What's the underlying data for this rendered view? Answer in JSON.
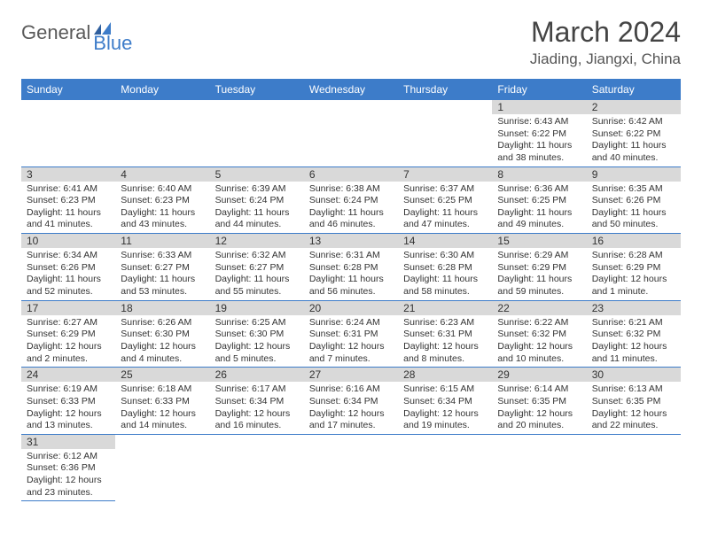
{
  "logo": {
    "general": "General",
    "blue": "Blue"
  },
  "title": "March 2024",
  "location": "Jiading, Jiangxi, China",
  "colors": {
    "header_bg": "#3d7cc9",
    "daynum_bg": "#d9d9d9",
    "row_border": "#3d7cc9"
  },
  "weekdays": [
    "Sunday",
    "Monday",
    "Tuesday",
    "Wednesday",
    "Thursday",
    "Friday",
    "Saturday"
  ],
  "grid": [
    [
      null,
      null,
      null,
      null,
      null,
      {
        "n": "1",
        "sr": "Sunrise: 6:43 AM",
        "ss": "Sunset: 6:22 PM",
        "dl": "Daylight: 11 hours and 38 minutes."
      },
      {
        "n": "2",
        "sr": "Sunrise: 6:42 AM",
        "ss": "Sunset: 6:22 PM",
        "dl": "Daylight: 11 hours and 40 minutes."
      }
    ],
    [
      {
        "n": "3",
        "sr": "Sunrise: 6:41 AM",
        "ss": "Sunset: 6:23 PM",
        "dl": "Daylight: 11 hours and 41 minutes."
      },
      {
        "n": "4",
        "sr": "Sunrise: 6:40 AM",
        "ss": "Sunset: 6:23 PM",
        "dl": "Daylight: 11 hours and 43 minutes."
      },
      {
        "n": "5",
        "sr": "Sunrise: 6:39 AM",
        "ss": "Sunset: 6:24 PM",
        "dl": "Daylight: 11 hours and 44 minutes."
      },
      {
        "n": "6",
        "sr": "Sunrise: 6:38 AM",
        "ss": "Sunset: 6:24 PM",
        "dl": "Daylight: 11 hours and 46 minutes."
      },
      {
        "n": "7",
        "sr": "Sunrise: 6:37 AM",
        "ss": "Sunset: 6:25 PM",
        "dl": "Daylight: 11 hours and 47 minutes."
      },
      {
        "n": "8",
        "sr": "Sunrise: 6:36 AM",
        "ss": "Sunset: 6:25 PM",
        "dl": "Daylight: 11 hours and 49 minutes."
      },
      {
        "n": "9",
        "sr": "Sunrise: 6:35 AM",
        "ss": "Sunset: 6:26 PM",
        "dl": "Daylight: 11 hours and 50 minutes."
      }
    ],
    [
      {
        "n": "10",
        "sr": "Sunrise: 6:34 AM",
        "ss": "Sunset: 6:26 PM",
        "dl": "Daylight: 11 hours and 52 minutes."
      },
      {
        "n": "11",
        "sr": "Sunrise: 6:33 AM",
        "ss": "Sunset: 6:27 PM",
        "dl": "Daylight: 11 hours and 53 minutes."
      },
      {
        "n": "12",
        "sr": "Sunrise: 6:32 AM",
        "ss": "Sunset: 6:27 PM",
        "dl": "Daylight: 11 hours and 55 minutes."
      },
      {
        "n": "13",
        "sr": "Sunrise: 6:31 AM",
        "ss": "Sunset: 6:28 PM",
        "dl": "Daylight: 11 hours and 56 minutes."
      },
      {
        "n": "14",
        "sr": "Sunrise: 6:30 AM",
        "ss": "Sunset: 6:28 PM",
        "dl": "Daylight: 11 hours and 58 minutes."
      },
      {
        "n": "15",
        "sr": "Sunrise: 6:29 AM",
        "ss": "Sunset: 6:29 PM",
        "dl": "Daylight: 11 hours and 59 minutes."
      },
      {
        "n": "16",
        "sr": "Sunrise: 6:28 AM",
        "ss": "Sunset: 6:29 PM",
        "dl": "Daylight: 12 hours and 1 minute."
      }
    ],
    [
      {
        "n": "17",
        "sr": "Sunrise: 6:27 AM",
        "ss": "Sunset: 6:29 PM",
        "dl": "Daylight: 12 hours and 2 minutes."
      },
      {
        "n": "18",
        "sr": "Sunrise: 6:26 AM",
        "ss": "Sunset: 6:30 PM",
        "dl": "Daylight: 12 hours and 4 minutes."
      },
      {
        "n": "19",
        "sr": "Sunrise: 6:25 AM",
        "ss": "Sunset: 6:30 PM",
        "dl": "Daylight: 12 hours and 5 minutes."
      },
      {
        "n": "20",
        "sr": "Sunrise: 6:24 AM",
        "ss": "Sunset: 6:31 PM",
        "dl": "Daylight: 12 hours and 7 minutes."
      },
      {
        "n": "21",
        "sr": "Sunrise: 6:23 AM",
        "ss": "Sunset: 6:31 PM",
        "dl": "Daylight: 12 hours and 8 minutes."
      },
      {
        "n": "22",
        "sr": "Sunrise: 6:22 AM",
        "ss": "Sunset: 6:32 PM",
        "dl": "Daylight: 12 hours and 10 minutes."
      },
      {
        "n": "23",
        "sr": "Sunrise: 6:21 AM",
        "ss": "Sunset: 6:32 PM",
        "dl": "Daylight: 12 hours and 11 minutes."
      }
    ],
    [
      {
        "n": "24",
        "sr": "Sunrise: 6:19 AM",
        "ss": "Sunset: 6:33 PM",
        "dl": "Daylight: 12 hours and 13 minutes."
      },
      {
        "n": "25",
        "sr": "Sunrise: 6:18 AM",
        "ss": "Sunset: 6:33 PM",
        "dl": "Daylight: 12 hours and 14 minutes."
      },
      {
        "n": "26",
        "sr": "Sunrise: 6:17 AM",
        "ss": "Sunset: 6:34 PM",
        "dl": "Daylight: 12 hours and 16 minutes."
      },
      {
        "n": "27",
        "sr": "Sunrise: 6:16 AM",
        "ss": "Sunset: 6:34 PM",
        "dl": "Daylight: 12 hours and 17 minutes."
      },
      {
        "n": "28",
        "sr": "Sunrise: 6:15 AM",
        "ss": "Sunset: 6:34 PM",
        "dl": "Daylight: 12 hours and 19 minutes."
      },
      {
        "n": "29",
        "sr": "Sunrise: 6:14 AM",
        "ss": "Sunset: 6:35 PM",
        "dl": "Daylight: 12 hours and 20 minutes."
      },
      {
        "n": "30",
        "sr": "Sunrise: 6:13 AM",
        "ss": "Sunset: 6:35 PM",
        "dl": "Daylight: 12 hours and 22 minutes."
      }
    ],
    [
      {
        "n": "31",
        "sr": "Sunrise: 6:12 AM",
        "ss": "Sunset: 6:36 PM",
        "dl": "Daylight: 12 hours and 23 minutes."
      },
      null,
      null,
      null,
      null,
      null,
      null
    ]
  ]
}
